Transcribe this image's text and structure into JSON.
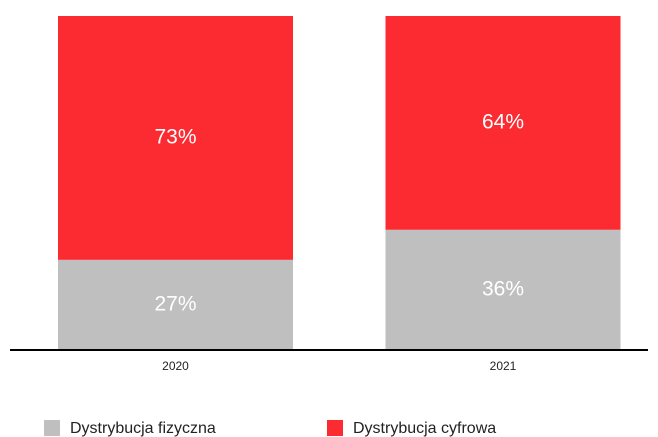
{
  "chart_data": {
    "type": "stacked_bar",
    "categories": [
      "2020",
      "2021"
    ],
    "series": [
      {
        "name": "Dystrybucja fizyczna",
        "color": "#bfbfbf",
        "values": [
          27,
          36
        ],
        "value_labels": [
          "27%",
          "36%"
        ]
      },
      {
        "name": "Dystrybucja cyfrowa",
        "color": "#fc2a31",
        "values": [
          73,
          64
        ],
        "value_labels": [
          "73%",
          "64%"
        ]
      }
    ],
    "ylim": [
      0,
      100
    ]
  }
}
